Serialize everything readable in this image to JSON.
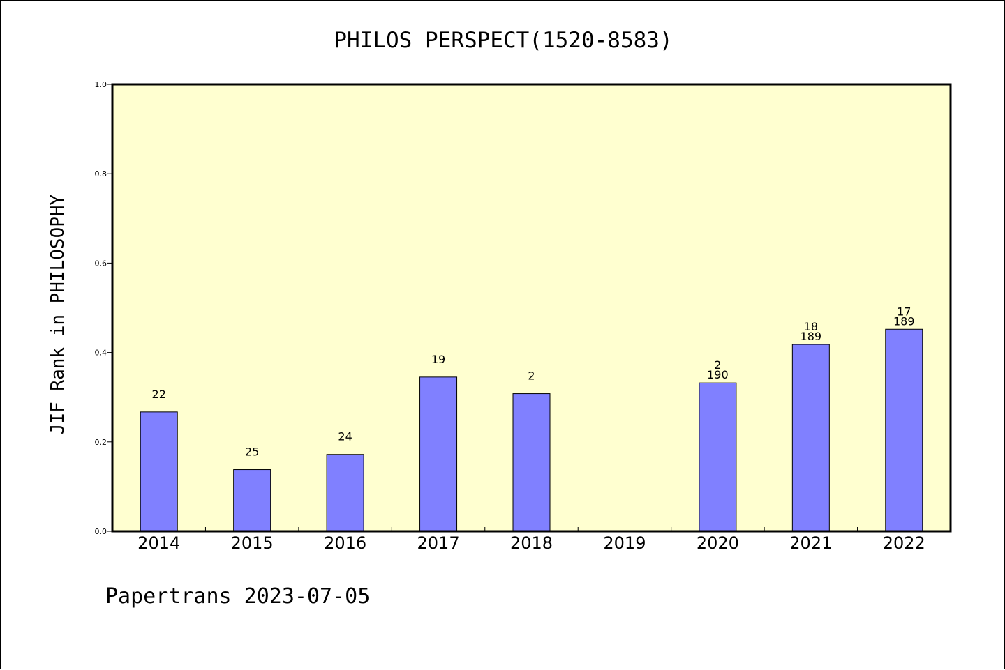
{
  "chart_data": {
    "type": "bar",
    "title": "PHILOS PERSPECT(1520-8583)",
    "ylabel": "JIF Rank in PHILOSOPHY",
    "xlabel": "",
    "ylim": [
      0,
      1.0
    ],
    "yticks": [
      "0.0",
      "0.2",
      "0.4",
      "0.6",
      "0.8",
      "1.0"
    ],
    "categories": [
      "2014",
      "2015",
      "2016",
      "2017",
      "2018",
      "2019",
      "2020",
      "2021",
      "2022"
    ],
    "values": [
      0.267,
      0.138,
      0.172,
      0.345,
      0.308,
      null,
      0.332,
      0.418,
      0.452
    ],
    "labels": [
      [
        "22"
      ],
      [
        "25"
      ],
      [
        "24"
      ],
      [
        "19"
      ],
      [
        "2"
      ],
      [],
      [
        "2",
        "190"
      ],
      [
        "18",
        "189"
      ],
      [
        "17",
        "189"
      ]
    ],
    "grid": false,
    "colors": {
      "bar": "#8080ff",
      "plot_bg": "#ffffd0",
      "border": "#000000"
    }
  },
  "footer": "Papertrans 2023-07-05"
}
